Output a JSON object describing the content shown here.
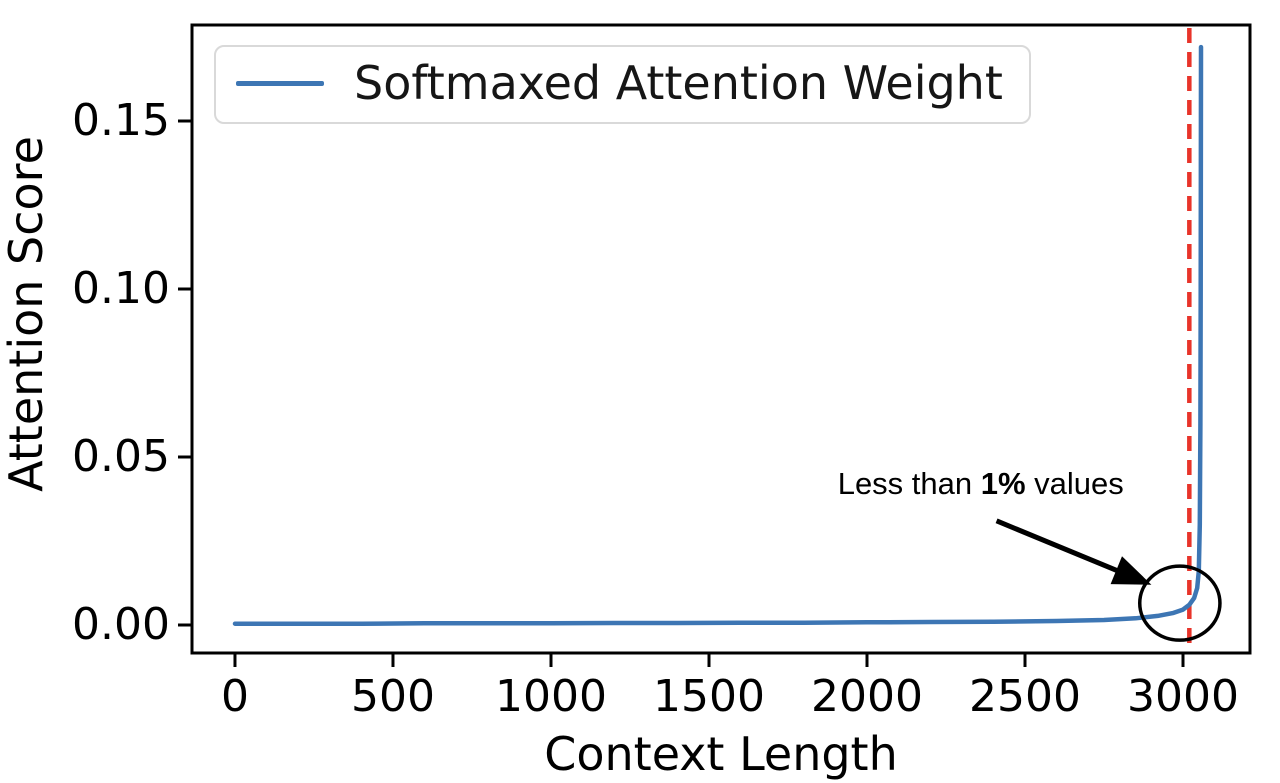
{
  "figure": {
    "background": "#ffffff",
    "text_color": "#000000"
  },
  "chart_data": {
    "type": "line",
    "title": "",
    "xlabel": "Context Length",
    "ylabel": "Attention Score",
    "xlim": [
      -136,
      3212
    ],
    "ylim": [
      -0.00833,
      0.17857
    ],
    "grid": false,
    "x_ticks": {
      "values": [
        0,
        500,
        1000,
        1500,
        2000,
        2500,
        3000
      ],
      "labels": [
        "0",
        "500",
        "1000",
        "1500",
        "2000",
        "2500",
        "3000"
      ]
    },
    "y_ticks": {
      "values": [
        0,
        0.05,
        0.1,
        0.15
      ],
      "labels": [
        "0.00",
        "0.05",
        "0.10",
        "0.15"
      ]
    },
    "legend": {
      "position": "upper left",
      "entries": [
        {
          "label": "Softmaxed Attention Weight",
          "color": "#3d76b4"
        }
      ]
    },
    "series": [
      {
        "name": "Softmaxed Attention Weight",
        "color": "#3d76b4",
        "x": [
          0,
          200,
          400,
          600,
          800,
          1000,
          1200,
          1400,
          1600,
          1800,
          2000,
          2200,
          2400,
          2600,
          2750,
          2850,
          2920,
          2970,
          3000,
          3020,
          3035,
          3045,
          3050,
          3053,
          3055,
          3056,
          3057
        ],
        "y": [
          0.0004,
          0.0004,
          0.0004,
          0.0005,
          0.0005,
          0.0005,
          0.0006,
          0.0006,
          0.0007,
          0.0007,
          0.0008,
          0.0009,
          0.001,
          0.0012,
          0.0015,
          0.002,
          0.0027,
          0.0036,
          0.0046,
          0.006,
          0.008,
          0.011,
          0.016,
          0.03,
          0.06,
          0.1,
          0.172
        ]
      }
    ],
    "annotations": {
      "vline": {
        "x": 3020,
        "color": "#e8342a",
        "style": "dashed"
      },
      "circle": {
        "x": 2990,
        "y": 0.0065,
        "rx": 127,
        "ry": 0.011,
        "color": "#000000"
      },
      "arrow": {
        "from": {
          "x": 2410,
          "y": 0.031
        },
        "to": {
          "x": 2900,
          "y": 0.012
        },
        "color": "#000000"
      },
      "label": {
        "x": 2360,
        "y": 0.042,
        "prefix": "Less than ",
        "bold": "1%",
        "suffix": " values"
      }
    }
  }
}
